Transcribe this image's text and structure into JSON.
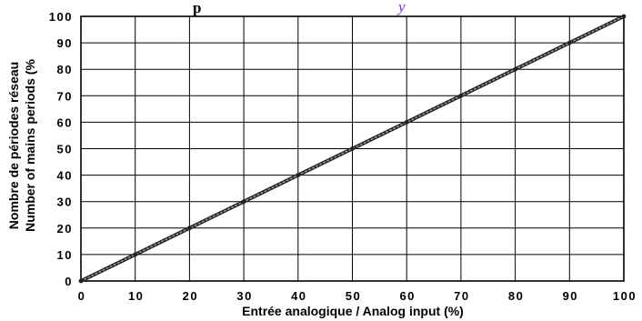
{
  "header": {
    "text": "p",
    "accent_text": "y"
  },
  "chart_data": {
    "type": "line",
    "title": "",
    "xlabel": "Entrée analogique / Analog input (%)",
    "ylabel_line1": "Nombre de périodes réseau",
    "ylabel_line2": "Number of mains periods (%",
    "xlim": [
      0,
      100
    ],
    "ylim": [
      0,
      100
    ],
    "x_ticks": [
      "0",
      "10",
      "20",
      "30",
      "40",
      "50",
      "60",
      "70",
      "80",
      "90",
      "100"
    ],
    "y_ticks": [
      "0",
      "10",
      "20",
      "30",
      "40",
      "50",
      "60",
      "70",
      "80",
      "90",
      "100"
    ],
    "grid": true,
    "series": [
      {
        "x": [
          0,
          10,
          20,
          30,
          40,
          50,
          60,
          70,
          80,
          90,
          100
        ],
        "y": [
          0,
          10,
          20,
          30,
          40,
          50,
          60,
          70,
          80,
          90,
          100
        ],
        "color": "#222222",
        "style": "dotted-thick"
      }
    ]
  }
}
